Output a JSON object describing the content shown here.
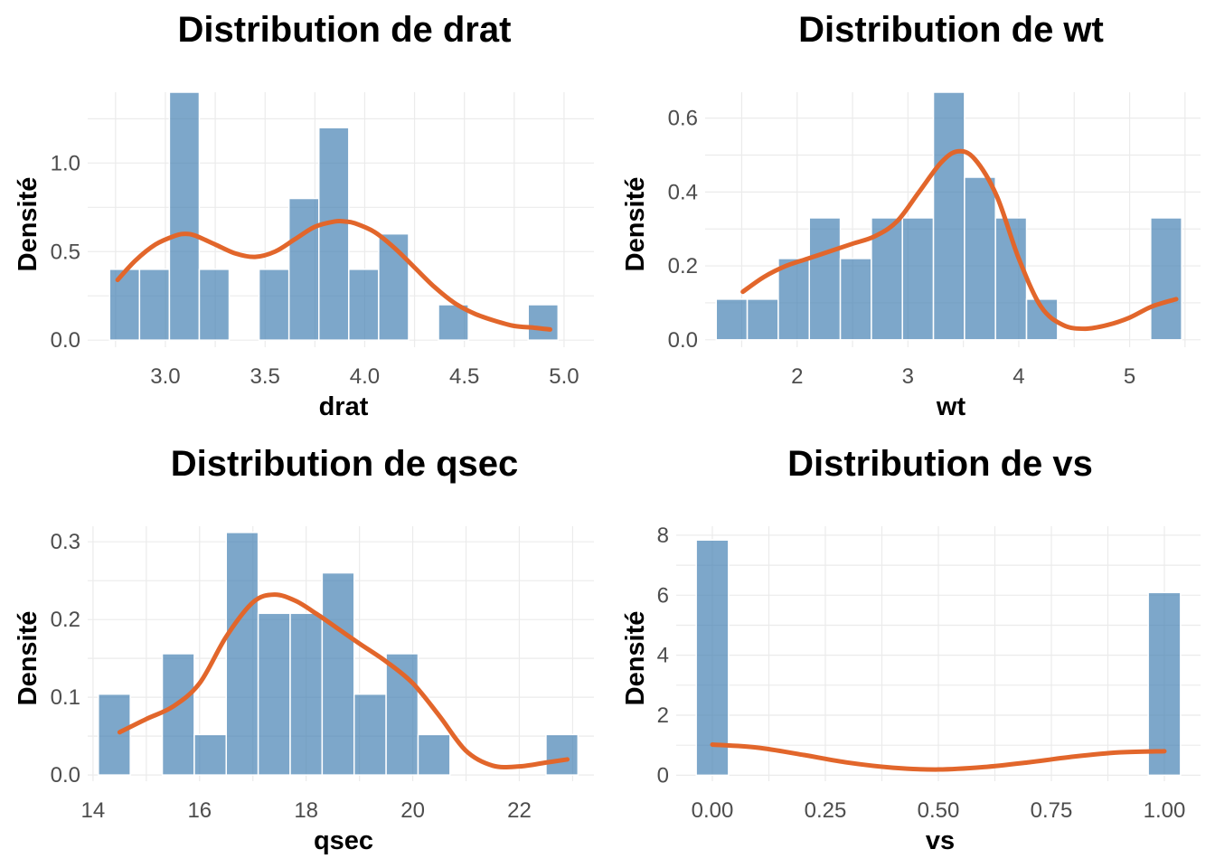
{
  "colors": {
    "bar": "#4682B4",
    "density": "#E2662B",
    "grid": "#EBEBEB",
    "tick": "#4D4D4D"
  },
  "chart_data": [
    {
      "type": "bar",
      "title": "Distribution de drat",
      "xlabel": "drat",
      "ylabel": "Densité",
      "xlim": [
        2.61,
        5.15
      ],
      "ylim": [
        -0.04,
        1.4
      ],
      "xticks": [
        "3.0",
        "3.5",
        "4.0",
        "4.5",
        "5.0"
      ],
      "xtick_values": [
        3.0,
        3.5,
        4.0,
        4.5,
        5.0
      ],
      "yticks": [
        "0.0",
        "0.5",
        "1.0"
      ],
      "ytick_values": [
        0.0,
        0.5,
        1.0
      ],
      "bin_edges": [
        2.72,
        2.87,
        3.02,
        3.17,
        3.32,
        3.47,
        3.62,
        3.77,
        3.92,
        4.07,
        4.22,
        4.37,
        4.52,
        4.67,
        4.82,
        4.97
      ],
      "values": [
        0.4,
        0.4,
        1.4,
        0.4,
        0,
        0.4,
        0.8,
        1.2,
        0.4,
        0.6,
        0,
        0.2,
        0,
        0,
        0.2
      ],
      "density": {
        "x": [
          2.76,
          2.85,
          2.95,
          3.05,
          3.1,
          3.15,
          3.25,
          3.35,
          3.45,
          3.55,
          3.65,
          3.75,
          3.85,
          3.9,
          3.95,
          4.05,
          4.15,
          4.25,
          4.35,
          4.45,
          4.55,
          4.65,
          4.75,
          4.85,
          4.93
        ],
        "y": [
          0.34,
          0.45,
          0.54,
          0.59,
          0.6,
          0.59,
          0.54,
          0.49,
          0.47,
          0.5,
          0.57,
          0.64,
          0.67,
          0.67,
          0.66,
          0.61,
          0.52,
          0.41,
          0.3,
          0.21,
          0.15,
          0.11,
          0.08,
          0.07,
          0.06
        ]
      }
    },
    {
      "type": "bar",
      "title": "Distribution de wt",
      "xlabel": "wt",
      "ylabel": "Densité",
      "xlim": [
        1.17,
        5.64
      ],
      "ylim": [
        -0.02,
        0.67
      ],
      "xticks": [
        "2",
        "3",
        "4",
        "5"
      ],
      "xtick_values": [
        2,
        3,
        4,
        5
      ],
      "yticks": [
        "0.0",
        "0.2",
        "0.4",
        "0.6"
      ],
      "ytick_values": [
        0.0,
        0.2,
        0.4,
        0.6
      ],
      "bin_edges": [
        1.27,
        1.55,
        1.83,
        2.11,
        2.39,
        2.67,
        2.95,
        3.23,
        3.51,
        3.79,
        4.07,
        4.35,
        4.63,
        4.91,
        5.19,
        5.47
      ],
      "values": [
        0.11,
        0.11,
        0.22,
        0.33,
        0.22,
        0.33,
        0.33,
        0.67,
        0.44,
        0.33,
        0.11,
        0,
        0,
        0,
        0.33
      ],
      "density": {
        "x": [
          1.51,
          1.7,
          1.9,
          2.1,
          2.3,
          2.5,
          2.7,
          2.9,
          3.1,
          3.3,
          3.45,
          3.6,
          3.8,
          4.0,
          4.2,
          4.4,
          4.6,
          4.8,
          5.0,
          5.2,
          5.42
        ],
        "y": [
          0.13,
          0.17,
          0.2,
          0.22,
          0.24,
          0.26,
          0.28,
          0.32,
          0.4,
          0.48,
          0.51,
          0.49,
          0.39,
          0.22,
          0.09,
          0.04,
          0.03,
          0.04,
          0.06,
          0.09,
          0.11
        ]
      }
    },
    {
      "type": "bar",
      "title": "Distribution de qsec",
      "xlabel": "qsec",
      "ylabel": "Densité",
      "xlim": [
        13.9,
        23.4
      ],
      "ylim": [
        -0.008,
        0.32
      ],
      "xticks": [
        "14",
        "16",
        "18",
        "20",
        "22"
      ],
      "xtick_values": [
        14,
        16,
        18,
        20,
        22
      ],
      "yticks": [
        "0.0",
        "0.1",
        "0.2",
        "0.3"
      ],
      "ytick_values": [
        0.0,
        0.1,
        0.2,
        0.3
      ],
      "bin_edges": [
        14.1,
        14.7,
        15.3,
        15.9,
        16.5,
        17.1,
        17.7,
        18.3,
        18.9,
        19.5,
        20.1,
        20.7,
        21.3,
        21.9,
        22.5,
        23.1
      ],
      "values": [
        0.104,
        0,
        0.156,
        0.052,
        0.312,
        0.208,
        0.208,
        0.26,
        0.104,
        0.156,
        0.052,
        0,
        0,
        0,
        0.052
      ],
      "density": {
        "x": [
          14.5,
          15.0,
          15.5,
          16.0,
          16.5,
          17.0,
          17.4,
          17.8,
          18.2,
          18.6,
          19.0,
          19.5,
          20.0,
          20.5,
          21.0,
          21.5,
          22.0,
          22.5,
          22.9
        ],
        "y": [
          0.055,
          0.072,
          0.088,
          0.118,
          0.178,
          0.222,
          0.232,
          0.224,
          0.207,
          0.188,
          0.169,
          0.146,
          0.118,
          0.076,
          0.031,
          0.012,
          0.011,
          0.016,
          0.02
        ]
      }
    },
    {
      "type": "bar",
      "title": "Distribution de vs",
      "xlabel": "vs",
      "ylabel": "Densité",
      "xlim": [
        -0.08,
        1.08
      ],
      "ylim": [
        -0.2,
        8.3
      ],
      "xticks": [
        "0.00",
        "0.25",
        "0.50",
        "0.75",
        "1.00"
      ],
      "xtick_values": [
        0,
        0.25,
        0.5,
        0.75,
        1.0
      ],
      "yticks": [
        "0",
        "2",
        "4",
        "6",
        "8"
      ],
      "ytick_values": [
        0,
        2,
        4,
        6,
        8
      ],
      "bin_edges": [
        -0.0357,
        0.0357,
        0.1071,
        0.1786,
        0.25,
        0.3214,
        0.3929,
        0.4643,
        0.5357,
        0.6071,
        0.6786,
        0.75,
        0.8214,
        0.8929,
        0.9643,
        1.0357
      ],
      "values": [
        7.84,
        0,
        0,
        0,
        0,
        0,
        0,
        0,
        0,
        0,
        0,
        0,
        0,
        0,
        6.09
      ],
      "density": {
        "x": [
          0.0,
          0.1,
          0.2,
          0.3,
          0.4,
          0.5,
          0.6,
          0.7,
          0.8,
          0.9,
          1.0
        ],
        "y": [
          1.02,
          0.92,
          0.68,
          0.42,
          0.25,
          0.19,
          0.27,
          0.43,
          0.62,
          0.76,
          0.8
        ]
      }
    }
  ]
}
